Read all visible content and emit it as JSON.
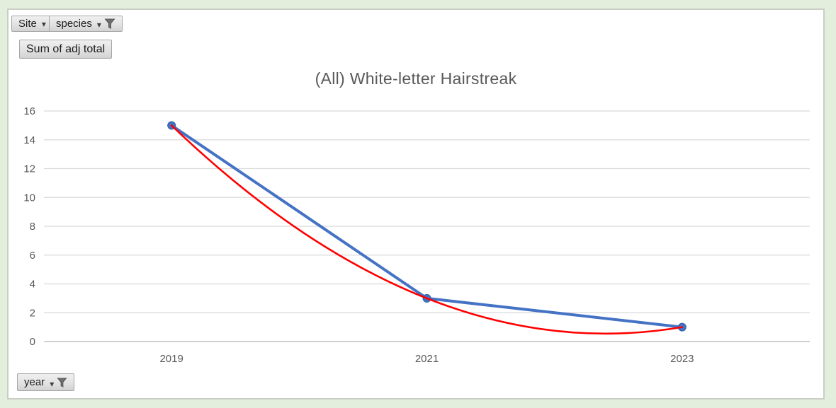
{
  "app": {
    "background_color": "#e3efdc",
    "frame_border_color": "#c8cec6"
  },
  "icons": {
    "dropdown": "▾",
    "filter": "funnel"
  },
  "field_buttons": {
    "site": {
      "label": "Site",
      "has_dropdown": true,
      "has_filter": false
    },
    "species": {
      "label": "species",
      "has_dropdown": true,
      "has_filter": true
    },
    "value": {
      "label": "Sum of adj total",
      "has_dropdown": false,
      "has_filter": false
    },
    "year": {
      "label": "year",
      "has_dropdown": true,
      "has_filter": true
    }
  },
  "chart_data": {
    "type": "line",
    "title": "(All) White-letter Hairstreak",
    "categories": [
      "2019",
      "2021",
      "2023"
    ],
    "series": [
      {
        "name": "Sum of adj total",
        "values": [
          15,
          3,
          1
        ],
        "color": "#4472c4",
        "marker": "circle",
        "marker_color": "#4472c4",
        "marker_edge_color": "#3360a8"
      }
    ],
    "trendline": {
      "series": "Sum of adj total",
      "shape": "polynomial-order-2",
      "through_values": [
        15,
        3,
        1
      ],
      "color": "#ff0000"
    },
    "xlabel": "",
    "ylabel": "",
    "ylim": [
      0,
      16
    ],
    "ytick_step": 2,
    "grid": true,
    "legend": "none",
    "gridline_color": "#d9d9d9",
    "axis_line_color": "#c0c0c0",
    "tick_label_color": "#595959",
    "title_color": "#595959"
  }
}
